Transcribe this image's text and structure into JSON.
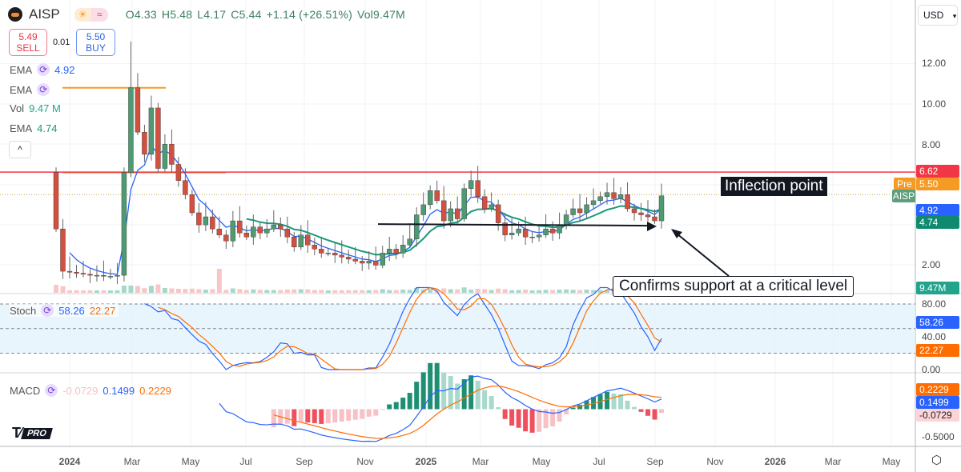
{
  "header": {
    "symbol": "AISP",
    "open": "O4.33",
    "high": "H5.48",
    "low": "L4.17",
    "close": "C5.44",
    "change": "+1.14 (+26.51%)",
    "volume": "Vol9.47M",
    "chip_icons": [
      "sun-icon",
      "wave-icon"
    ]
  },
  "trade": {
    "sell_price": "5.49",
    "sell_label": "SELL",
    "spread": "0.01",
    "buy_price": "5.50",
    "buy_label": "BUY"
  },
  "legend": {
    "ema1": {
      "label": "EMA",
      "value": "4.92"
    },
    "ema2": {
      "label": "EMA",
      "value": ""
    },
    "vol": {
      "label": "Vol",
      "value": "9.47 M"
    },
    "ema3": {
      "label": "EMA",
      "value": "4.74"
    },
    "stoch": {
      "label": "Stoch",
      "k": "58.26",
      "d": "22.27"
    },
    "macd": {
      "label": "MACD",
      "hist": "-0.0729",
      "macd": "0.1499",
      "signal": "0.2229"
    }
  },
  "currency": "USD",
  "price_axis": [
    "12.00",
    "10.00",
    "8.00",
    "2.00"
  ],
  "stoch_axis": [
    "80.00",
    "40.00",
    "0.00"
  ],
  "macd_axis": [
    "-0.5000"
  ],
  "time_axis": [
    "2024",
    "Mar",
    "May",
    "Jul",
    "Sep",
    "Nov",
    "2025",
    "Mar",
    "May",
    "Jul",
    "Sep",
    "Nov",
    "2026",
    "Mar",
    "May"
  ],
  "tags": {
    "resistance": "6.62",
    "pre_label": "Pre",
    "pre": "5.50",
    "symbol": "AISP",
    "ema_fast": "4.92",
    "ema_slow": "4.74",
    "volume": "9.47M",
    "stoch_k": "58.26",
    "stoch_d": "22.27",
    "macd_signal": "0.2229",
    "macd": "0.1499",
    "macd_hist": "-0.0729"
  },
  "annotations": {
    "inflection": "Inflection point",
    "support": "Confirms support at a critical level"
  },
  "brand": "PRO",
  "colors": {
    "up": "#4f9a72",
    "down": "#d3503f",
    "ema_fast": "#2962ff",
    "ema_slow": "#17997a",
    "resistance": "#f23645",
    "orange_level": "#f59a23",
    "stoch_k": "#2962ff",
    "stoch_d": "#ff6d00"
  },
  "chart_data": {
    "type": "candlestick",
    "interval": "weekly",
    "x_range": [
      "2023-12",
      "2025-09"
    ],
    "ylim": [
      1,
      13
    ],
    "levels": {
      "resistance": 6.62,
      "orange_high": 10.8,
      "orange_low": 6.6,
      "support": 4.0
    },
    "closes": [
      3.8,
      1.7,
      1.65,
      1.6,
      1.55,
      1.5,
      1.5,
      1.45,
      1.45,
      1.5,
      6.6,
      10.8,
      8.6,
      7.5,
      9.8,
      6.8,
      8.0,
      7.0,
      6.2,
      5.5,
      4.6,
      4.0,
      4.4,
      3.8,
      3.5,
      3.2,
      4.2,
      3.6,
      3.4,
      3.9,
      3.6,
      3.8,
      4.0,
      3.8,
      3.4,
      2.9,
      3.5,
      3.0,
      2.8,
      2.6,
      2.6,
      2.5,
      2.4,
      2.3,
      2.2,
      2.1,
      2.2,
      2.0,
      2.6,
      2.8,
      2.6,
      3.0,
      3.3,
      4.5,
      5.0,
      5.7,
      5.2,
      4.2,
      4.8,
      4.3,
      5.8,
      6.2,
      5.4,
      4.8,
      5.0,
      4.1,
      3.5,
      3.6,
      3.8,
      3.4,
      3.4,
      3.5,
      3.8,
      3.6,
      4.0,
      4.5,
      4.8,
      4.6,
      5.0,
      5.2,
      5.4,
      5.6,
      5.3,
      5.5,
      4.8,
      4.6,
      4.5,
      4.4,
      4.2,
      5.44
    ],
    "first_open": 6.6
  }
}
